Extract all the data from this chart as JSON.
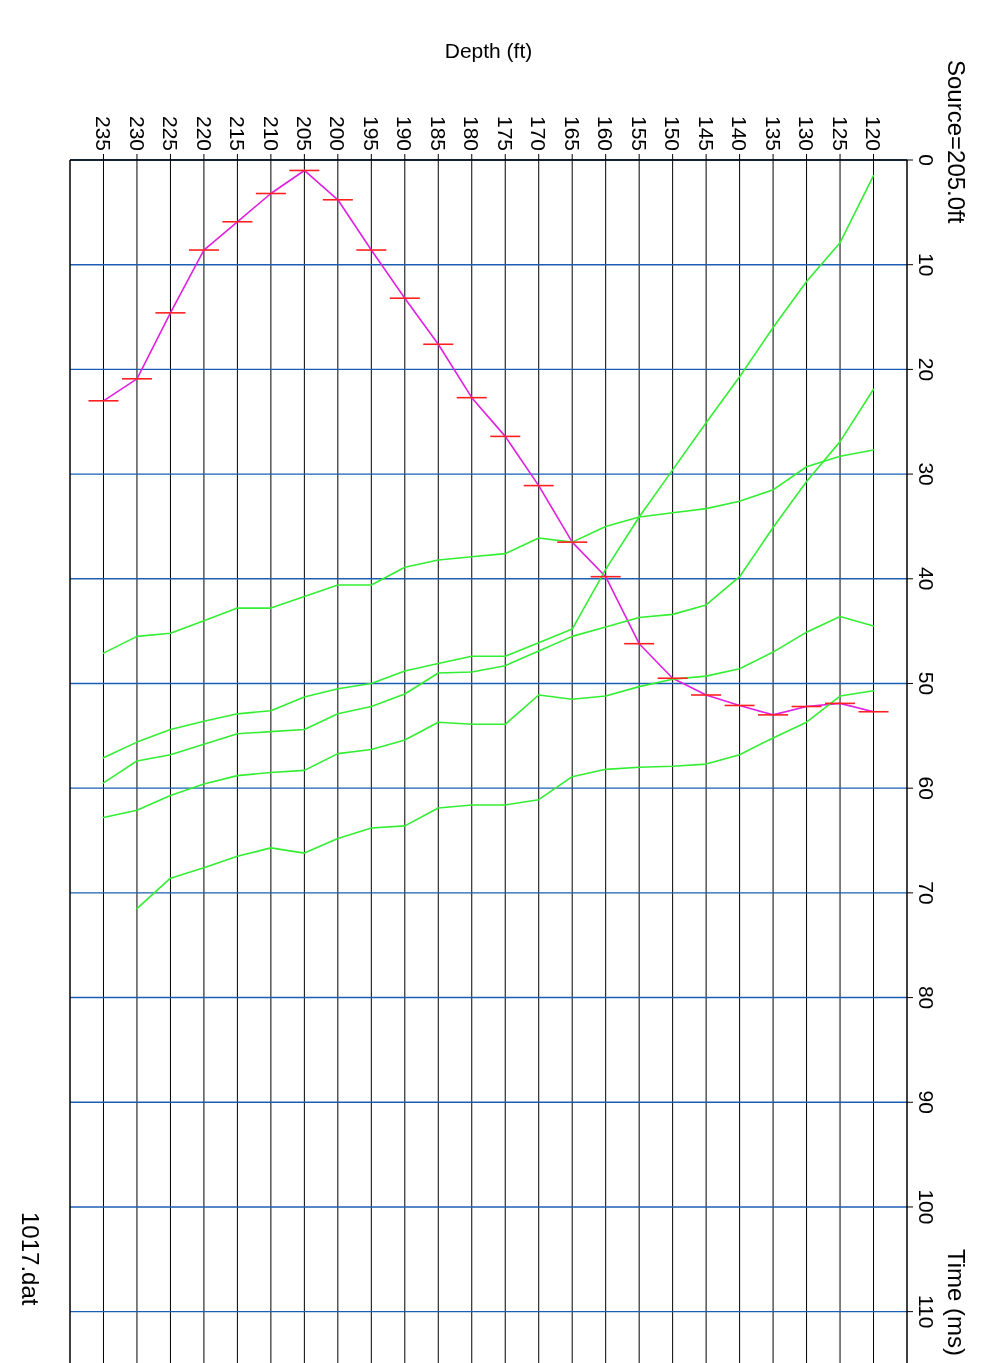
{
  "chart_data": {
    "type": "line",
    "title": "Source=205.0ft",
    "xlabel": "Depth (ft)",
    "ylabel": "Time (ms)",
    "annotations": [
      "1017.dat"
    ],
    "xlim": [
      240,
      115
    ],
    "ylim": [
      115,
      0
    ],
    "yticks": [
      0,
      10,
      20,
      30,
      40,
      50,
      60,
      70,
      80,
      90,
      100,
      110
    ],
    "xticks": [
      120,
      125,
      130,
      135,
      140,
      145,
      150,
      155,
      160,
      165,
      170,
      175,
      180,
      185,
      190,
      195,
      200,
      205,
      210,
      215,
      220,
      225,
      230,
      235
    ],
    "grid": true,
    "marker": "none",
    "line_style": "solid",
    "x": [
      120,
      125,
      130,
      135,
      140,
      145,
      150,
      155,
      160,
      165,
      170,
      175,
      180,
      185,
      190,
      195,
      200,
      205,
      210,
      215,
      220,
      225,
      230,
      235
    ],
    "series": [
      {
        "type": "line",
        "color": "#e020e0",
        "values": [
          52.7,
          51.9,
          52.2,
          53.0,
          52.1,
          51.1,
          49.5,
          46.2,
          39.8,
          36.5,
          31.1,
          26.4,
          22.7,
          17.6,
          13.2,
          8.6,
          3.8,
          1.0,
          3.2,
          5.9,
          8.6,
          14.6,
          20.9,
          23.0
        ]
      },
      {
        "type": "line",
        "color": "#33ee33",
        "values": [
          1.5,
          7.9,
          11.6,
          16.0,
          20.7,
          25.1,
          29.6,
          34.1,
          39.1,
          44.8,
          46.1,
          47.4,
          47.4,
          48.1,
          48.8,
          50.0,
          50.5,
          51.3,
          52.6,
          52.9,
          53.6,
          54.4,
          55.6,
          57.1
        ]
      },
      {
        "type": "line",
        "color": "#33ee33",
        "values": [
          21.9,
          26.9,
          30.7,
          35.1,
          39.8,
          42.5,
          43.4,
          43.7,
          44.6,
          45.5,
          46.9,
          48.3,
          48.9,
          49.0,
          51.0,
          52.2,
          52.9,
          54.4,
          54.6,
          54.8,
          55.8,
          56.8,
          57.4,
          59.5
        ]
      },
      {
        "type": "line",
        "color": "#33ee33",
        "values": [
          27.7,
          28.3,
          29.3,
          31.5,
          32.6,
          33.3,
          33.7,
          34.1,
          35.0,
          36.5,
          36.1,
          37.6,
          37.9,
          38.2,
          38.9,
          40.6,
          40.6,
          41.7,
          42.8,
          42.8,
          44.0,
          45.2,
          45.5,
          47.1
        ]
      },
      {
        "type": "line",
        "color": "#33ee33",
        "values": [
          44.5,
          43.6,
          45.1,
          47.0,
          48.6,
          49.3,
          49.6,
          50.3,
          51.2,
          51.5,
          51.1,
          53.9,
          53.9,
          53.7,
          55.4,
          56.3,
          56.7,
          58.3,
          58.5,
          58.8,
          59.6,
          60.7,
          62.1,
          62.8
        ]
      },
      {
        "type": "line",
        "color": "#33ee33",
        "values": [
          50.7,
          51.2,
          53.7,
          55.2,
          56.8,
          57.7,
          57.9,
          58.0,
          58.2,
          58.9,
          61.1,
          61.6,
          61.6,
          61.9,
          63.6,
          63.8,
          64.8,
          66.2,
          65.7,
          66.5,
          67.6,
          68.6,
          71.5,
          null
        ]
      }
    ]
  }
}
